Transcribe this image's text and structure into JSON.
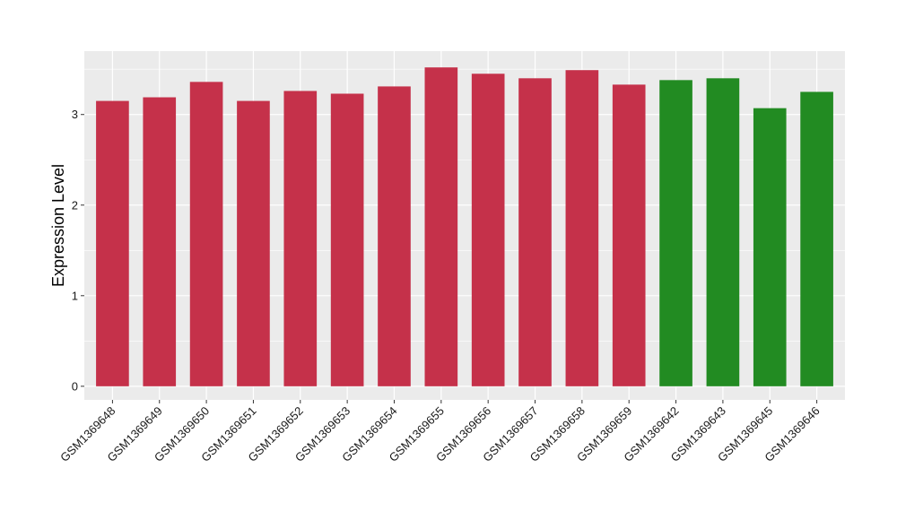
{
  "chart_data": {
    "type": "bar",
    "title": "",
    "xlabel": "",
    "ylabel": "Expression Level",
    "ylim": [
      -0.15,
      3.7
    ],
    "yticks": [
      0,
      1,
      2,
      3
    ],
    "grid": true,
    "legend": "none",
    "categories": [
      "GSM1369648",
      "GSM1369649",
      "GSM1369650",
      "GSM1369651",
      "GSM1369652",
      "GSM1369653",
      "GSM1369654",
      "GSM1369655",
      "GSM1369656",
      "GSM1369657",
      "GSM1369658",
      "GSM1369659",
      "GSM1369642",
      "GSM1369643",
      "GSM1369645",
      "GSM1369646"
    ],
    "values": [
      3.15,
      3.19,
      3.36,
      3.15,
      3.26,
      3.23,
      3.31,
      3.52,
      3.45,
      3.4,
      3.49,
      3.33,
      3.38,
      3.4,
      3.07,
      3.25
    ],
    "colors": [
      "#C5314A",
      "#C5314A",
      "#C5314A",
      "#C5314A",
      "#C5314A",
      "#C5314A",
      "#C5314A",
      "#C5314A",
      "#C5314A",
      "#C5314A",
      "#C5314A",
      "#C5314A",
      "#228B22",
      "#228B22",
      "#228B22",
      "#228B22"
    ],
    "panel_background": "#EBEBEB",
    "grid_color": "#FFFFFF"
  }
}
